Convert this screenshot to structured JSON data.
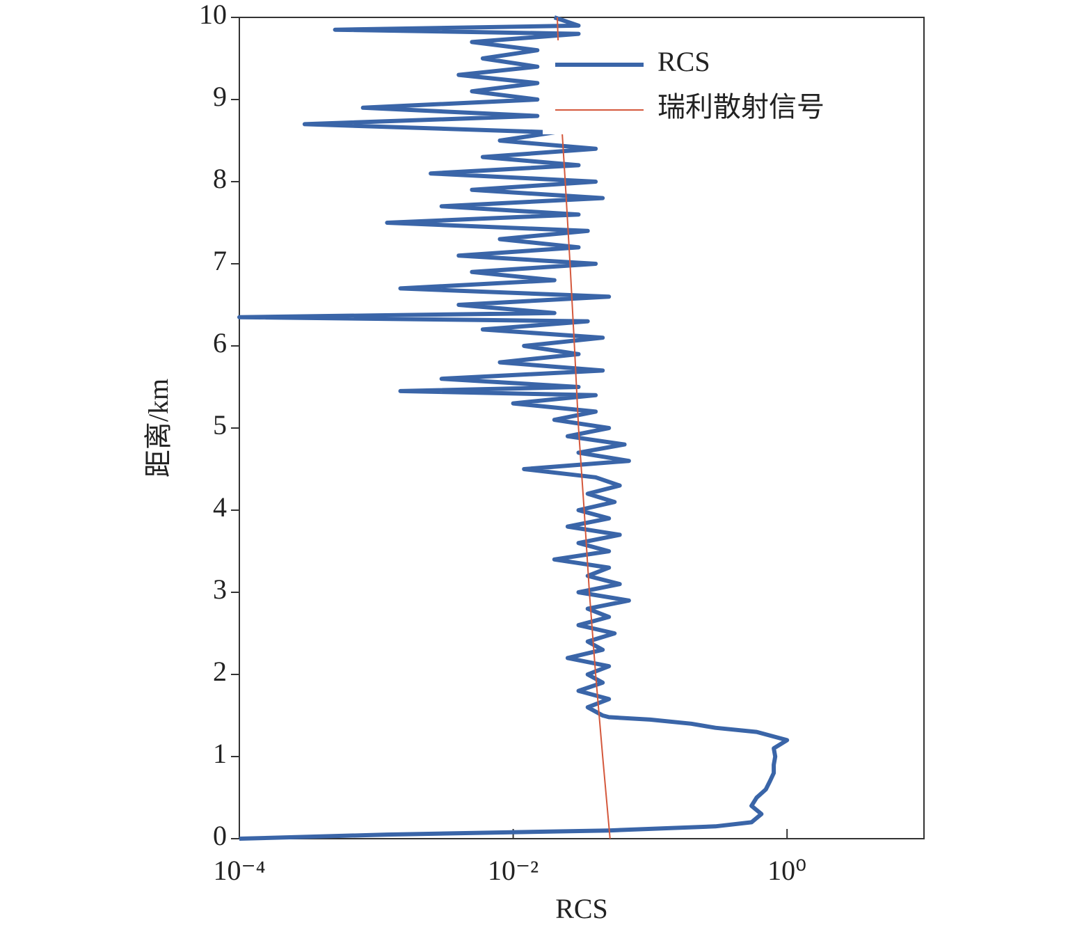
{
  "chart_data": {
    "type": "line",
    "xlabel": "RCS",
    "ylabel": "距离/km",
    "xscale": "log",
    "xlim": [
      0.0001,
      10
    ],
    "ylim": [
      0,
      10
    ],
    "xticks": [
      {
        "value": 0.0001,
        "label": "10⁻⁴"
      },
      {
        "value": 0.01,
        "label": "10⁻²"
      },
      {
        "value": 1,
        "label": "10⁰"
      }
    ],
    "yticks": [
      0,
      1,
      2,
      3,
      4,
      5,
      6,
      7,
      8,
      9,
      10
    ],
    "legend": "upper right",
    "series": [
      {
        "name": "RCS",
        "color": "#3a65a8",
        "y": [
          0,
          0.05,
          0.1,
          0.15,
          0.2,
          0.3,
          0.4,
          0.5,
          0.6,
          0.7,
          0.8,
          0.9,
          1.0,
          1.1,
          1.2,
          1.3,
          1.35,
          1.4,
          1.45,
          1.48,
          1.5,
          1.6,
          1.7,
          1.8,
          1.9,
          2.0,
          2.1,
          2.2,
          2.3,
          2.4,
          2.5,
          2.6,
          2.7,
          2.8,
          2.9,
          3.0,
          3.1,
          3.2,
          3.3,
          3.4,
          3.5,
          3.6,
          3.7,
          3.8,
          3.9,
          4.0,
          4.1,
          4.2,
          4.3,
          4.4,
          4.5,
          4.6,
          4.7,
          4.8,
          4.9,
          5.0,
          5.1,
          5.2,
          5.3,
          5.4,
          5.45,
          5.5,
          5.6,
          5.7,
          5.8,
          5.9,
          6.0,
          6.1,
          6.2,
          6.3,
          6.35,
          6.4,
          6.5,
          6.6,
          6.7,
          6.8,
          6.9,
          7.0,
          7.1,
          7.2,
          7.3,
          7.4,
          7.5,
          7.6,
          7.7,
          7.8,
          7.9,
          8.0,
          8.1,
          8.2,
          8.3,
          8.4,
          8.5,
          8.6,
          8.7,
          8.8,
          8.9,
          9.0,
          9.1,
          9.2,
          9.3,
          9.4,
          9.5,
          9.6,
          9.7,
          9.8,
          9.85,
          9.9,
          10.0
        ],
        "x": [
          0.0001,
          0.0012,
          0.05,
          0.3,
          0.55,
          0.65,
          0.55,
          0.6,
          0.7,
          0.75,
          0.8,
          0.8,
          0.82,
          0.8,
          1.0,
          0.6,
          0.3,
          0.2,
          0.1,
          0.05,
          0.045,
          0.035,
          0.05,
          0.03,
          0.045,
          0.035,
          0.05,
          0.025,
          0.045,
          0.035,
          0.055,
          0.03,
          0.05,
          0.035,
          0.07,
          0.03,
          0.06,
          0.035,
          0.05,
          0.02,
          0.05,
          0.03,
          0.06,
          0.025,
          0.05,
          0.03,
          0.055,
          0.035,
          0.06,
          0.04,
          0.012,
          0.07,
          0.03,
          0.065,
          0.025,
          0.05,
          0.02,
          0.04,
          0.01,
          0.04,
          0.0015,
          0.03,
          0.003,
          0.045,
          0.008,
          0.03,
          0.012,
          0.045,
          0.006,
          0.035,
          0.0001,
          0.02,
          0.004,
          0.05,
          0.0015,
          0.02,
          0.005,
          0.04,
          0.004,
          0.03,
          0.008,
          0.035,
          0.0012,
          0.03,
          0.003,
          0.045,
          0.005,
          0.04,
          0.0025,
          0.03,
          0.006,
          0.04,
          0.008,
          0.02,
          0.0003,
          0.015,
          0.0008,
          0.015,
          0.005,
          0.015,
          0.004,
          0.015,
          0.006,
          0.015,
          0.005,
          0.03,
          0.0005,
          0.03,
          0.02
        ]
      },
      {
        "name": "瑞利散射信号",
        "color": "#d4583c",
        "y": [
          0,
          1,
          2,
          3,
          4,
          5,
          6,
          7,
          8,
          9,
          10
        ],
        "x": [
          0.051,
          0.045,
          0.04,
          0.036,
          0.033,
          0.03,
          0.028,
          0.026,
          0.024,
          0.022,
          0.021
        ]
      }
    ]
  }
}
